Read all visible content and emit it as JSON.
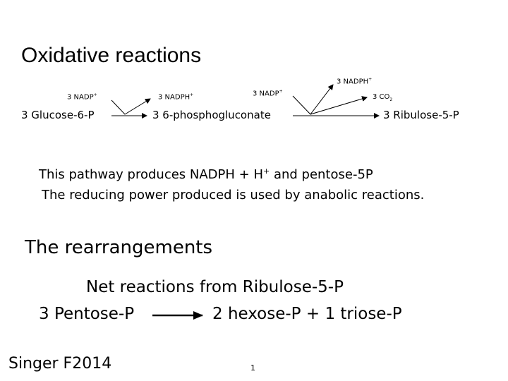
{
  "slide": {
    "title": "Oxidative reactions",
    "reaction": {
      "step1_cofactor_in_prefix": "3 NADP",
      "step1_cofactor_in_charge": "+",
      "step1_cofactor_out_prefix": "3 NADPH",
      "step1_cofactor_out_charge": "+",
      "step2_cofactor_in_prefix": "3 NADP",
      "step2_cofactor_in_charge": "+",
      "step2_cofactor_out_prefix": "3 NADPH",
      "step2_cofactor_out_charge": "+",
      "step2_co2_prefix": "3 CO",
      "step2_co2_subscript": "2",
      "substrate": "3 Glucose-6-P",
      "intermediate": "3  6-phosphogluconate",
      "product": "3  Ribulose-5-P"
    },
    "line1_prefix": "This pathway produces  NADPH + H",
    "line1_charge": "+",
    "line1_suffix": " and pentose-5P",
    "line2": "The reducing power produced is used by anabolic reactions.",
    "section_title": "The rearrangements",
    "net_title": "Net reactions from Ribulose-5-P",
    "net_left": "3 Pentose-P",
    "net_right": "2 hexose-P + 1 triose-P",
    "footer": "Singer F2014",
    "page_number": "1"
  }
}
